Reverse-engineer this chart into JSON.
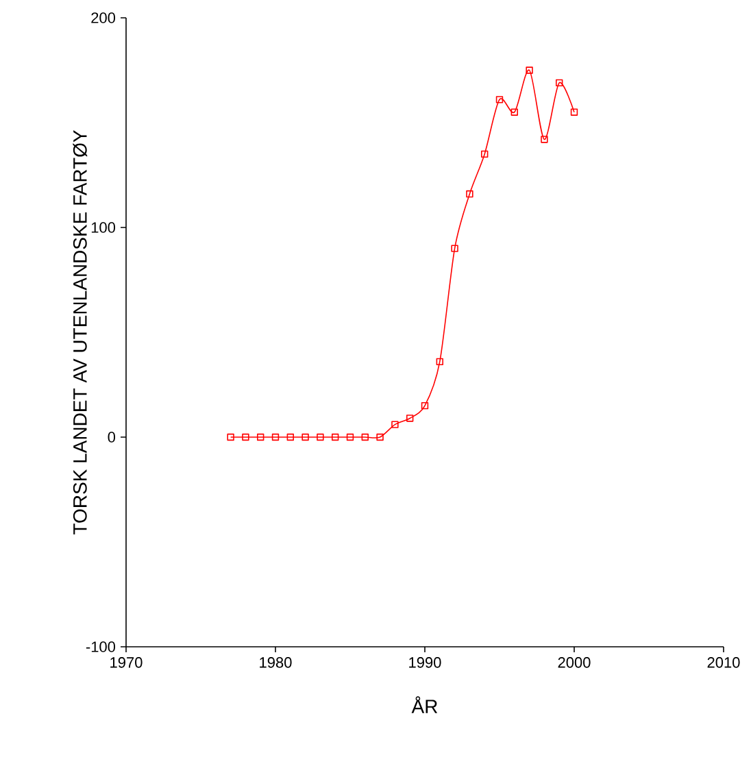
{
  "chart_data": {
    "type": "line",
    "xlabel": "ÅR",
    "ylabel": "TORSK LANDET AV UTENLANDSKE FARTØY",
    "x": [
      1977,
      1978,
      1979,
      1980,
      1981,
      1982,
      1983,
      1984,
      1985,
      1986,
      1987,
      1988,
      1989,
      1990,
      1991,
      1992,
      1993,
      1994,
      1995,
      1996,
      1997,
      1998,
      1999,
      2000
    ],
    "values": [
      0,
      0,
      0,
      0,
      0,
      0,
      0,
      0,
      0,
      0,
      0,
      6,
      9,
      15,
      36,
      90,
      116,
      135,
      161,
      155,
      175,
      142,
      169,
      155
    ],
    "color": "#ff0000",
    "marker": "square",
    "line_style": "solid",
    "xlim": [
      1970,
      2010
    ],
    "xticks": [
      1970,
      1980,
      1990,
      2000,
      2010
    ],
    "ylim": [
      -100,
      200
    ],
    "yticks": [
      -100,
      0,
      100,
      200
    ],
    "grid": false
  }
}
